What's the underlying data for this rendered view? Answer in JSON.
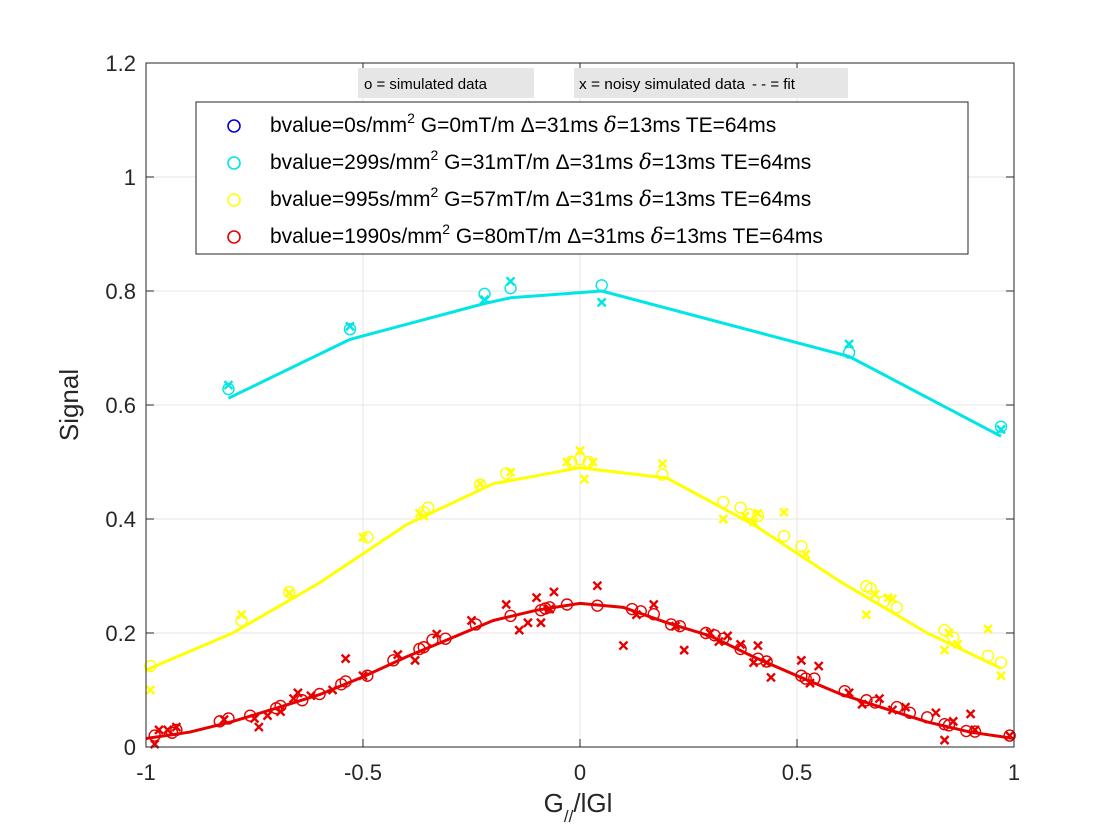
{
  "chart_data": {
    "type": "scatter",
    "xlabel": "G",
    "xlabel_sub": "//",
    "xlabel_suffix": "/lGl",
    "ylabel": "Signal",
    "xlim": [
      -1,
      1
    ],
    "ylim": [
      0,
      1.2
    ],
    "xticks": [
      -1,
      -0.5,
      0,
      0.5,
      1
    ],
    "xtick_labels": [
      "-1",
      "-0.5",
      "0",
      "0.5",
      "1"
    ],
    "yticks": [
      0,
      0.2,
      0.4,
      0.6,
      0.8,
      1,
      1.2
    ],
    "ytick_labels": [
      "0",
      "0.2",
      "0.4",
      "0.6",
      "0.8",
      "1",
      "1.2"
    ],
    "grid": true,
    "legend_position": "top",
    "annotations": [
      "o = simulated data",
      "x = noisy simulated data",
      "- - = fit"
    ],
    "series": [
      {
        "name": "bvalue=0s/mm2 G=0mT/m Δ=31ms δ=13ms TE=64ms",
        "label_parts": [
          "bvalue=0s/mm",
          "2",
          " G=0mT/m ",
          "Δ",
          "=31ms ",
          "δ",
          "=13ms TE=64ms"
        ],
        "color": "#0000cc",
        "simulated": [],
        "noisy": [],
        "fit": []
      },
      {
        "name": "bvalue=299s/mm2 G=31mT/m Δ=31ms δ=13ms TE=64ms",
        "label_parts": [
          "bvalue=299s/mm",
          "2",
          " G=31mT/m ",
          "Δ",
          "=31ms ",
          "δ",
          "=13ms TE=64ms"
        ],
        "color": "#00e5e5",
        "simulated": [
          [
            -0.81,
            0.628
          ],
          [
            -0.53,
            0.733
          ],
          [
            -0.22,
            0.795
          ],
          [
            -0.16,
            0.805
          ],
          [
            0.05,
            0.81
          ],
          [
            0.62,
            0.692
          ],
          [
            0.97,
            0.562
          ]
        ],
        "noisy": [
          [
            -0.81,
            0.635
          ],
          [
            -0.53,
            0.738
          ],
          [
            -0.22,
            0.785
          ],
          [
            -0.16,
            0.817
          ],
          [
            0.05,
            0.78
          ],
          [
            0.62,
            0.707
          ],
          [
            0.97,
            0.557
          ]
        ],
        "fit": [
          [
            -0.81,
            0.612
          ],
          [
            -0.53,
            0.715
          ],
          [
            -0.22,
            0.778
          ],
          [
            -0.16,
            0.788
          ],
          [
            0.05,
            0.8
          ],
          [
            0.62,
            0.685
          ],
          [
            0.97,
            0.545
          ]
        ]
      },
      {
        "name": "bvalue=995s/mm2 G=57mT/m Δ=31ms δ=13ms TE=64ms",
        "label_parts": [
          "bvalue=995s/mm",
          "2",
          " G=57mT/m ",
          "Δ",
          "=31ms ",
          "δ",
          "=13ms TE=64ms"
        ],
        "color": "#ffff00",
        "simulated": [
          [
            -0.99,
            0.142
          ],
          [
            -0.78,
            0.222
          ],
          [
            -0.67,
            0.272
          ],
          [
            -0.49,
            0.368
          ],
          [
            -0.36,
            0.412
          ],
          [
            -0.35,
            0.42
          ],
          [
            -0.23,
            0.46
          ],
          [
            -0.17,
            0.48
          ],
          [
            -0.02,
            0.5
          ],
          [
            0.0,
            0.505
          ],
          [
            0.02,
            0.5
          ],
          [
            0.19,
            0.478
          ],
          [
            0.33,
            0.43
          ],
          [
            0.37,
            0.42
          ],
          [
            0.39,
            0.408
          ],
          [
            0.41,
            0.405
          ],
          [
            0.47,
            0.37
          ],
          [
            0.51,
            0.352
          ],
          [
            0.66,
            0.282
          ],
          [
            0.67,
            0.278
          ],
          [
            0.7,
            0.255
          ],
          [
            0.73,
            0.245
          ],
          [
            0.84,
            0.205
          ],
          [
            0.86,
            0.192
          ],
          [
            0.94,
            0.16
          ],
          [
            0.97,
            0.148
          ]
        ],
        "noisy": [
          [
            -0.99,
            0.1
          ],
          [
            -0.78,
            0.232
          ],
          [
            -0.67,
            0.27
          ],
          [
            -0.5,
            0.368
          ],
          [
            -0.37,
            0.41
          ],
          [
            -0.36,
            0.405
          ],
          [
            -0.23,
            0.462
          ],
          [
            -0.16,
            0.482
          ],
          [
            -0.03,
            0.5
          ],
          [
            0.0,
            0.52
          ],
          [
            0.01,
            0.47
          ],
          [
            0.03,
            0.5
          ],
          [
            0.19,
            0.497
          ],
          [
            0.33,
            0.4
          ],
          [
            0.38,
            0.405
          ],
          [
            0.4,
            0.395
          ],
          [
            0.41,
            0.41
          ],
          [
            0.47,
            0.412
          ],
          [
            0.52,
            0.338
          ],
          [
            0.66,
            0.232
          ],
          [
            0.68,
            0.268
          ],
          [
            0.71,
            0.262
          ],
          [
            0.72,
            0.26
          ],
          [
            0.84,
            0.17
          ],
          [
            0.85,
            0.2
          ],
          [
            0.87,
            0.18
          ],
          [
            0.94,
            0.207
          ],
          [
            0.97,
            0.125
          ]
        ],
        "fit": [
          [
            -1,
            0.135
          ],
          [
            -0.8,
            0.2
          ],
          [
            -0.6,
            0.288
          ],
          [
            -0.4,
            0.39
          ],
          [
            -0.2,
            0.462
          ],
          [
            0.0,
            0.49
          ],
          [
            0.2,
            0.472
          ],
          [
            0.4,
            0.39
          ],
          [
            0.6,
            0.29
          ],
          [
            0.8,
            0.2
          ],
          [
            0.97,
            0.138
          ]
        ]
      },
      {
        "name": "bvalue=1990s/mm2 G=80mT/m Δ=31ms δ=13ms TE=64ms",
        "label_parts": [
          "bvalue=1990s/mm",
          "2",
          " G=80mT/m ",
          "Δ",
          "=31ms ",
          "δ",
          "=13ms TE=64ms"
        ],
        "color": "#e60000",
        "simulated": [
          [
            -0.98,
            0.02
          ],
          [
            -0.94,
            0.025
          ],
          [
            -0.93,
            0.03
          ],
          [
            -0.83,
            0.045
          ],
          [
            -0.81,
            0.05
          ],
          [
            -0.76,
            0.055
          ],
          [
            -0.7,
            0.068
          ],
          [
            -0.69,
            0.072
          ],
          [
            -0.64,
            0.082
          ],
          [
            -0.6,
            0.093
          ],
          [
            -0.55,
            0.11
          ],
          [
            -0.54,
            0.115
          ],
          [
            -0.49,
            0.125
          ],
          [
            -0.43,
            0.152
          ],
          [
            -0.37,
            0.172
          ],
          [
            -0.36,
            0.175
          ],
          [
            -0.34,
            0.188
          ],
          [
            -0.31,
            0.19
          ],
          [
            -0.24,
            0.215
          ],
          [
            -0.16,
            0.23
          ],
          [
            -0.09,
            0.24
          ],
          [
            -0.08,
            0.243
          ],
          [
            -0.07,
            0.245
          ],
          [
            -0.03,
            0.25
          ],
          [
            0.04,
            0.248
          ],
          [
            0.12,
            0.242
          ],
          [
            0.14,
            0.238
          ],
          [
            0.17,
            0.233
          ],
          [
            0.21,
            0.215
          ],
          [
            0.23,
            0.212
          ],
          [
            0.29,
            0.2
          ],
          [
            0.31,
            0.196
          ],
          [
            0.33,
            0.19
          ],
          [
            0.37,
            0.172
          ],
          [
            0.41,
            0.155
          ],
          [
            0.43,
            0.15
          ],
          [
            0.51,
            0.125
          ],
          [
            0.52,
            0.12
          ],
          [
            0.54,
            0.12
          ],
          [
            0.61,
            0.098
          ],
          [
            0.66,
            0.082
          ],
          [
            0.68,
            0.078
          ],
          [
            0.73,
            0.07
          ],
          [
            0.76,
            0.06
          ],
          [
            0.8,
            0.052
          ],
          [
            0.84,
            0.04
          ],
          [
            0.85,
            0.038
          ],
          [
            0.89,
            0.028
          ],
          [
            0.91,
            0.027
          ],
          [
            0.99,
            0.02
          ]
        ],
        "noisy": [
          [
            -0.98,
            0.005
          ],
          [
            -0.97,
            0.03
          ],
          [
            -0.95,
            0.03
          ],
          [
            -0.93,
            0.035
          ],
          [
            -0.82,
            0.048
          ],
          [
            -0.75,
            0.05
          ],
          [
            -0.74,
            0.035
          ],
          [
            -0.72,
            0.055
          ],
          [
            -0.69,
            0.062
          ],
          [
            -0.66,
            0.085
          ],
          [
            -0.65,
            0.095
          ],
          [
            -0.62,
            0.09
          ],
          [
            -0.57,
            0.1
          ],
          [
            -0.54,
            0.155
          ],
          [
            -0.5,
            0.125
          ],
          [
            -0.42,
            0.162
          ],
          [
            -0.38,
            0.152
          ],
          [
            -0.33,
            0.198
          ],
          [
            -0.25,
            0.222
          ],
          [
            -0.17,
            0.25
          ],
          [
            -0.14,
            0.205
          ],
          [
            -0.12,
            0.218
          ],
          [
            -0.1,
            0.262
          ],
          [
            -0.09,
            0.218
          ],
          [
            -0.07,
            0.242
          ],
          [
            -0.06,
            0.272
          ],
          [
            0.04,
            0.283
          ],
          [
            0.1,
            0.178
          ],
          [
            0.13,
            0.232
          ],
          [
            0.17,
            0.25
          ],
          [
            0.22,
            0.212
          ],
          [
            0.24,
            0.17
          ],
          [
            0.3,
            0.2
          ],
          [
            0.32,
            0.185
          ],
          [
            0.34,
            0.195
          ],
          [
            0.37,
            0.18
          ],
          [
            0.4,
            0.148
          ],
          [
            0.41,
            0.178
          ],
          [
            0.43,
            0.148
          ],
          [
            0.44,
            0.122
          ],
          [
            0.51,
            0.152
          ],
          [
            0.53,
            0.112
          ],
          [
            0.55,
            0.142
          ],
          [
            0.62,
            0.095
          ],
          [
            0.65,
            0.075
          ],
          [
            0.69,
            0.085
          ],
          [
            0.72,
            0.065
          ],
          [
            0.75,
            0.07
          ],
          [
            0.82,
            0.06
          ],
          [
            0.84,
            0.012
          ],
          [
            0.86,
            0.045
          ],
          [
            0.9,
            0.058
          ],
          [
            0.91,
            0.03
          ],
          [
            0.99,
            0.02
          ]
        ],
        "fit": [
          [
            -1,
            0.015
          ],
          [
            -0.9,
            0.026
          ],
          [
            -0.8,
            0.045
          ],
          [
            -0.7,
            0.068
          ],
          [
            -0.6,
            0.092
          ],
          [
            -0.5,
            0.123
          ],
          [
            -0.4,
            0.158
          ],
          [
            -0.3,
            0.19
          ],
          [
            -0.2,
            0.222
          ],
          [
            -0.1,
            0.24
          ],
          [
            0.0,
            0.252
          ],
          [
            0.1,
            0.245
          ],
          [
            0.2,
            0.218
          ],
          [
            0.3,
            0.195
          ],
          [
            0.4,
            0.158
          ],
          [
            0.5,
            0.125
          ],
          [
            0.6,
            0.093
          ],
          [
            0.7,
            0.068
          ],
          [
            0.8,
            0.044
          ],
          [
            0.9,
            0.026
          ],
          [
            1,
            0.015
          ]
        ]
      }
    ]
  }
}
